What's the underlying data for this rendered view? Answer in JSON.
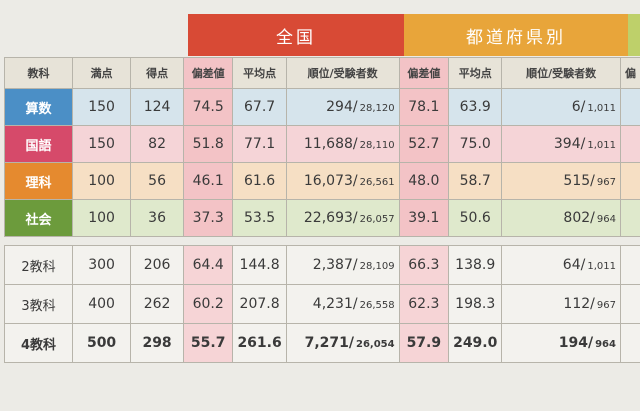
{
  "header": {
    "national": "全国",
    "prefecture": "都道府県別"
  },
  "columns": [
    "教科",
    "満点",
    "得点",
    "偏差値",
    "平均点",
    "順位/受験者数",
    "偏差値",
    "平均点",
    "順位/受験者数",
    "偏"
  ],
  "subjects": [
    {
      "name": "算数",
      "full": "150",
      "score": "124",
      "n_dev": "74.5",
      "n_avg": "67.7",
      "n_rank": "294/",
      "n_total": "28,120",
      "p_dev": "78.1",
      "p_avg": "63.9",
      "p_rank": "6/",
      "p_total": "1,011"
    },
    {
      "name": "国語",
      "full": "150",
      "score": "82",
      "n_dev": "51.8",
      "n_avg": "77.1",
      "n_rank": "11,688/",
      "n_total": "28,110",
      "p_dev": "52.7",
      "p_avg": "75.0",
      "p_rank": "394/",
      "p_total": "1,011"
    },
    {
      "name": "理科",
      "full": "100",
      "score": "56",
      "n_dev": "46.1",
      "n_avg": "61.6",
      "n_rank": "16,073/",
      "n_total": "26,561",
      "p_dev": "48.0",
      "p_avg": "58.7",
      "p_rank": "515/",
      "p_total": "967"
    },
    {
      "name": "社会",
      "full": "100",
      "score": "36",
      "n_dev": "37.3",
      "n_avg": "53.5",
      "n_rank": "22,693/",
      "n_total": "26,057",
      "p_dev": "39.1",
      "p_avg": "50.6",
      "p_rank": "802/",
      "p_total": "964"
    }
  ],
  "totals": [
    {
      "name": "2教科",
      "full": "300",
      "score": "206",
      "n_dev": "64.4",
      "n_avg": "144.8",
      "n_rank": "2,387/",
      "n_total": "28,109",
      "p_dev": "66.3",
      "p_avg": "138.9",
      "p_rank": "64/",
      "p_total": "1,011"
    },
    {
      "name": "3教科",
      "full": "400",
      "score": "262",
      "n_dev": "60.2",
      "n_avg": "207.8",
      "n_rank": "4,231/",
      "n_total": "26,558",
      "p_dev": "62.3",
      "p_avg": "198.3",
      "p_rank": "112/",
      "p_total": "967"
    },
    {
      "name": "4教科",
      "full": "500",
      "score": "298",
      "n_dev": "55.7",
      "n_avg": "261.6",
      "n_rank": "7,271/",
      "n_total": "26,054",
      "p_dev": "57.9",
      "p_avg": "249.0",
      "p_rank": "194/",
      "p_total": "964"
    }
  ],
  "colors": {
    "national": "#d84a35",
    "prefecture": "#e8a53a",
    "math": "#4b8fc6",
    "japanese": "#d64a6a",
    "science": "#e58a2f",
    "social": "#6c9b3c",
    "deviation_highlight": "#f3c3c6"
  }
}
